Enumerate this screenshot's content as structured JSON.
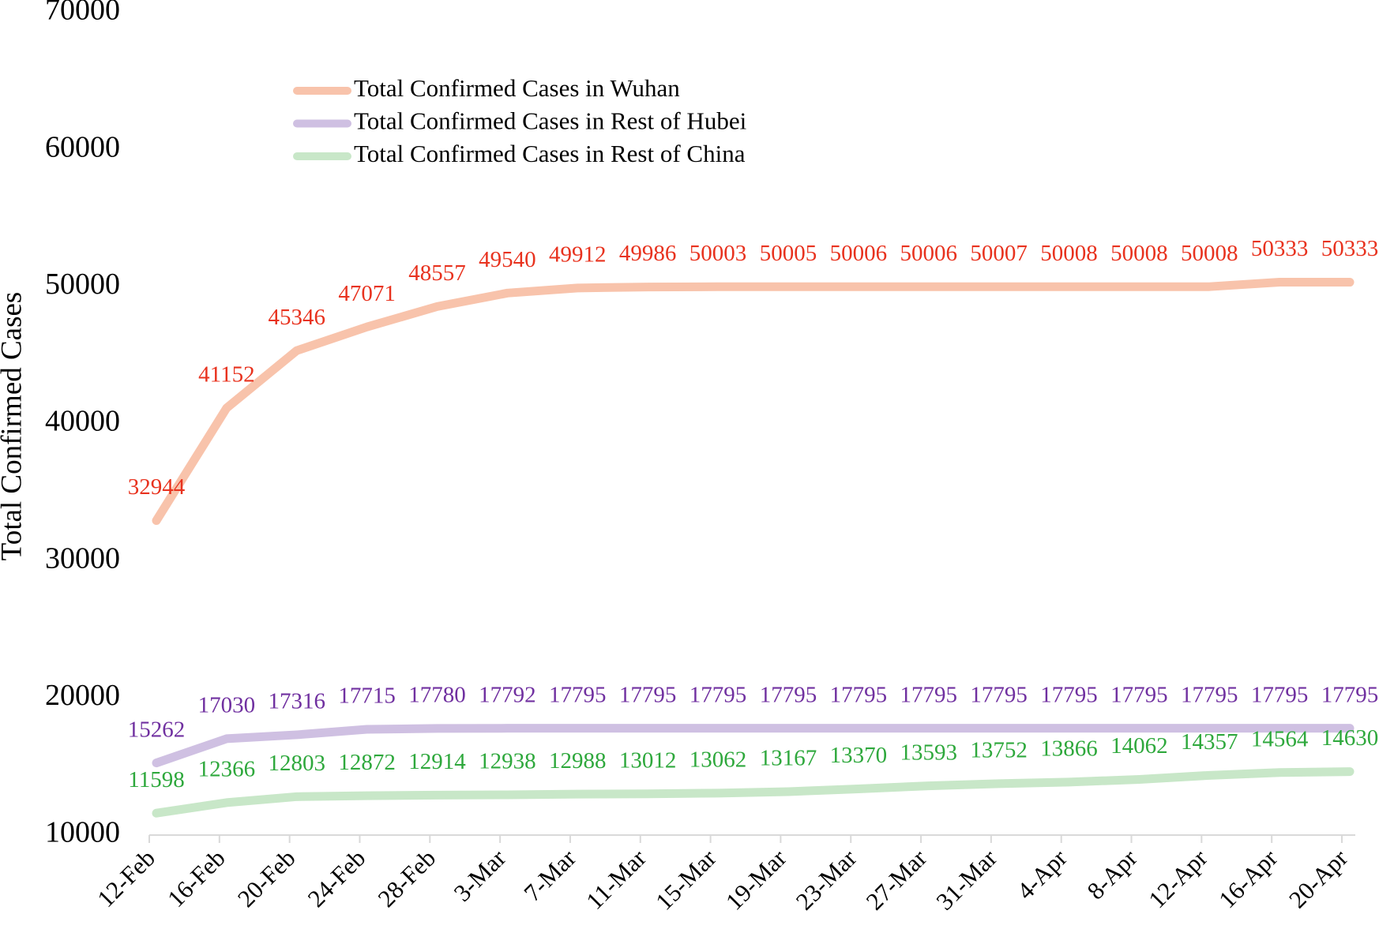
{
  "chart_data": {
    "type": "line",
    "y_label": "Total Confirmed Cases",
    "categories": [
      "12-Feb",
      "16-Feb",
      "20-Feb",
      "24-Feb",
      "28-Feb",
      "3-Mar",
      "7-Mar",
      "11-Mar",
      "15-Mar",
      "19-Mar",
      "23-Mar",
      "27-Mar",
      "31-Mar",
      "4-Apr",
      "8-Apr",
      "12-Apr",
      "16-Apr",
      "20-Apr"
    ],
    "ylim": [
      10000,
      70000
    ],
    "yticks": [
      10000,
      20000,
      30000,
      40000,
      50000,
      60000,
      70000
    ],
    "legend": "top-left",
    "series": [
      {
        "name": "Total Confirmed Cases in Wuhan",
        "color": "#f8c3ab",
        "label_color": "#e8321e",
        "values": [
          32944,
          41152,
          45346,
          47071,
          48557,
          49540,
          49912,
          49986,
          50003,
          50005,
          50006,
          50006,
          50007,
          50008,
          50008,
          50008,
          50333,
          50333
        ]
      },
      {
        "name": "Total Confirmed Cases in Rest of Hubei",
        "color": "#cfc0e2",
        "label_color": "#7030a0",
        "values": [
          15262,
          17030,
          17316,
          17715,
          17780,
          17792,
          17795,
          17795,
          17795,
          17795,
          17795,
          17795,
          17795,
          17795,
          17795,
          17795,
          17795,
          17795
        ]
      },
      {
        "name": "Total Confirmed Cases in Rest of China",
        "color": "#c8e7c8",
        "label_color": "#2ea83c",
        "values": [
          11598,
          12366,
          12803,
          12872,
          12914,
          12938,
          12988,
          13012,
          13062,
          13167,
          13370,
          13593,
          13752,
          13866,
          14062,
          14357,
          14564,
          14630
        ]
      }
    ]
  }
}
